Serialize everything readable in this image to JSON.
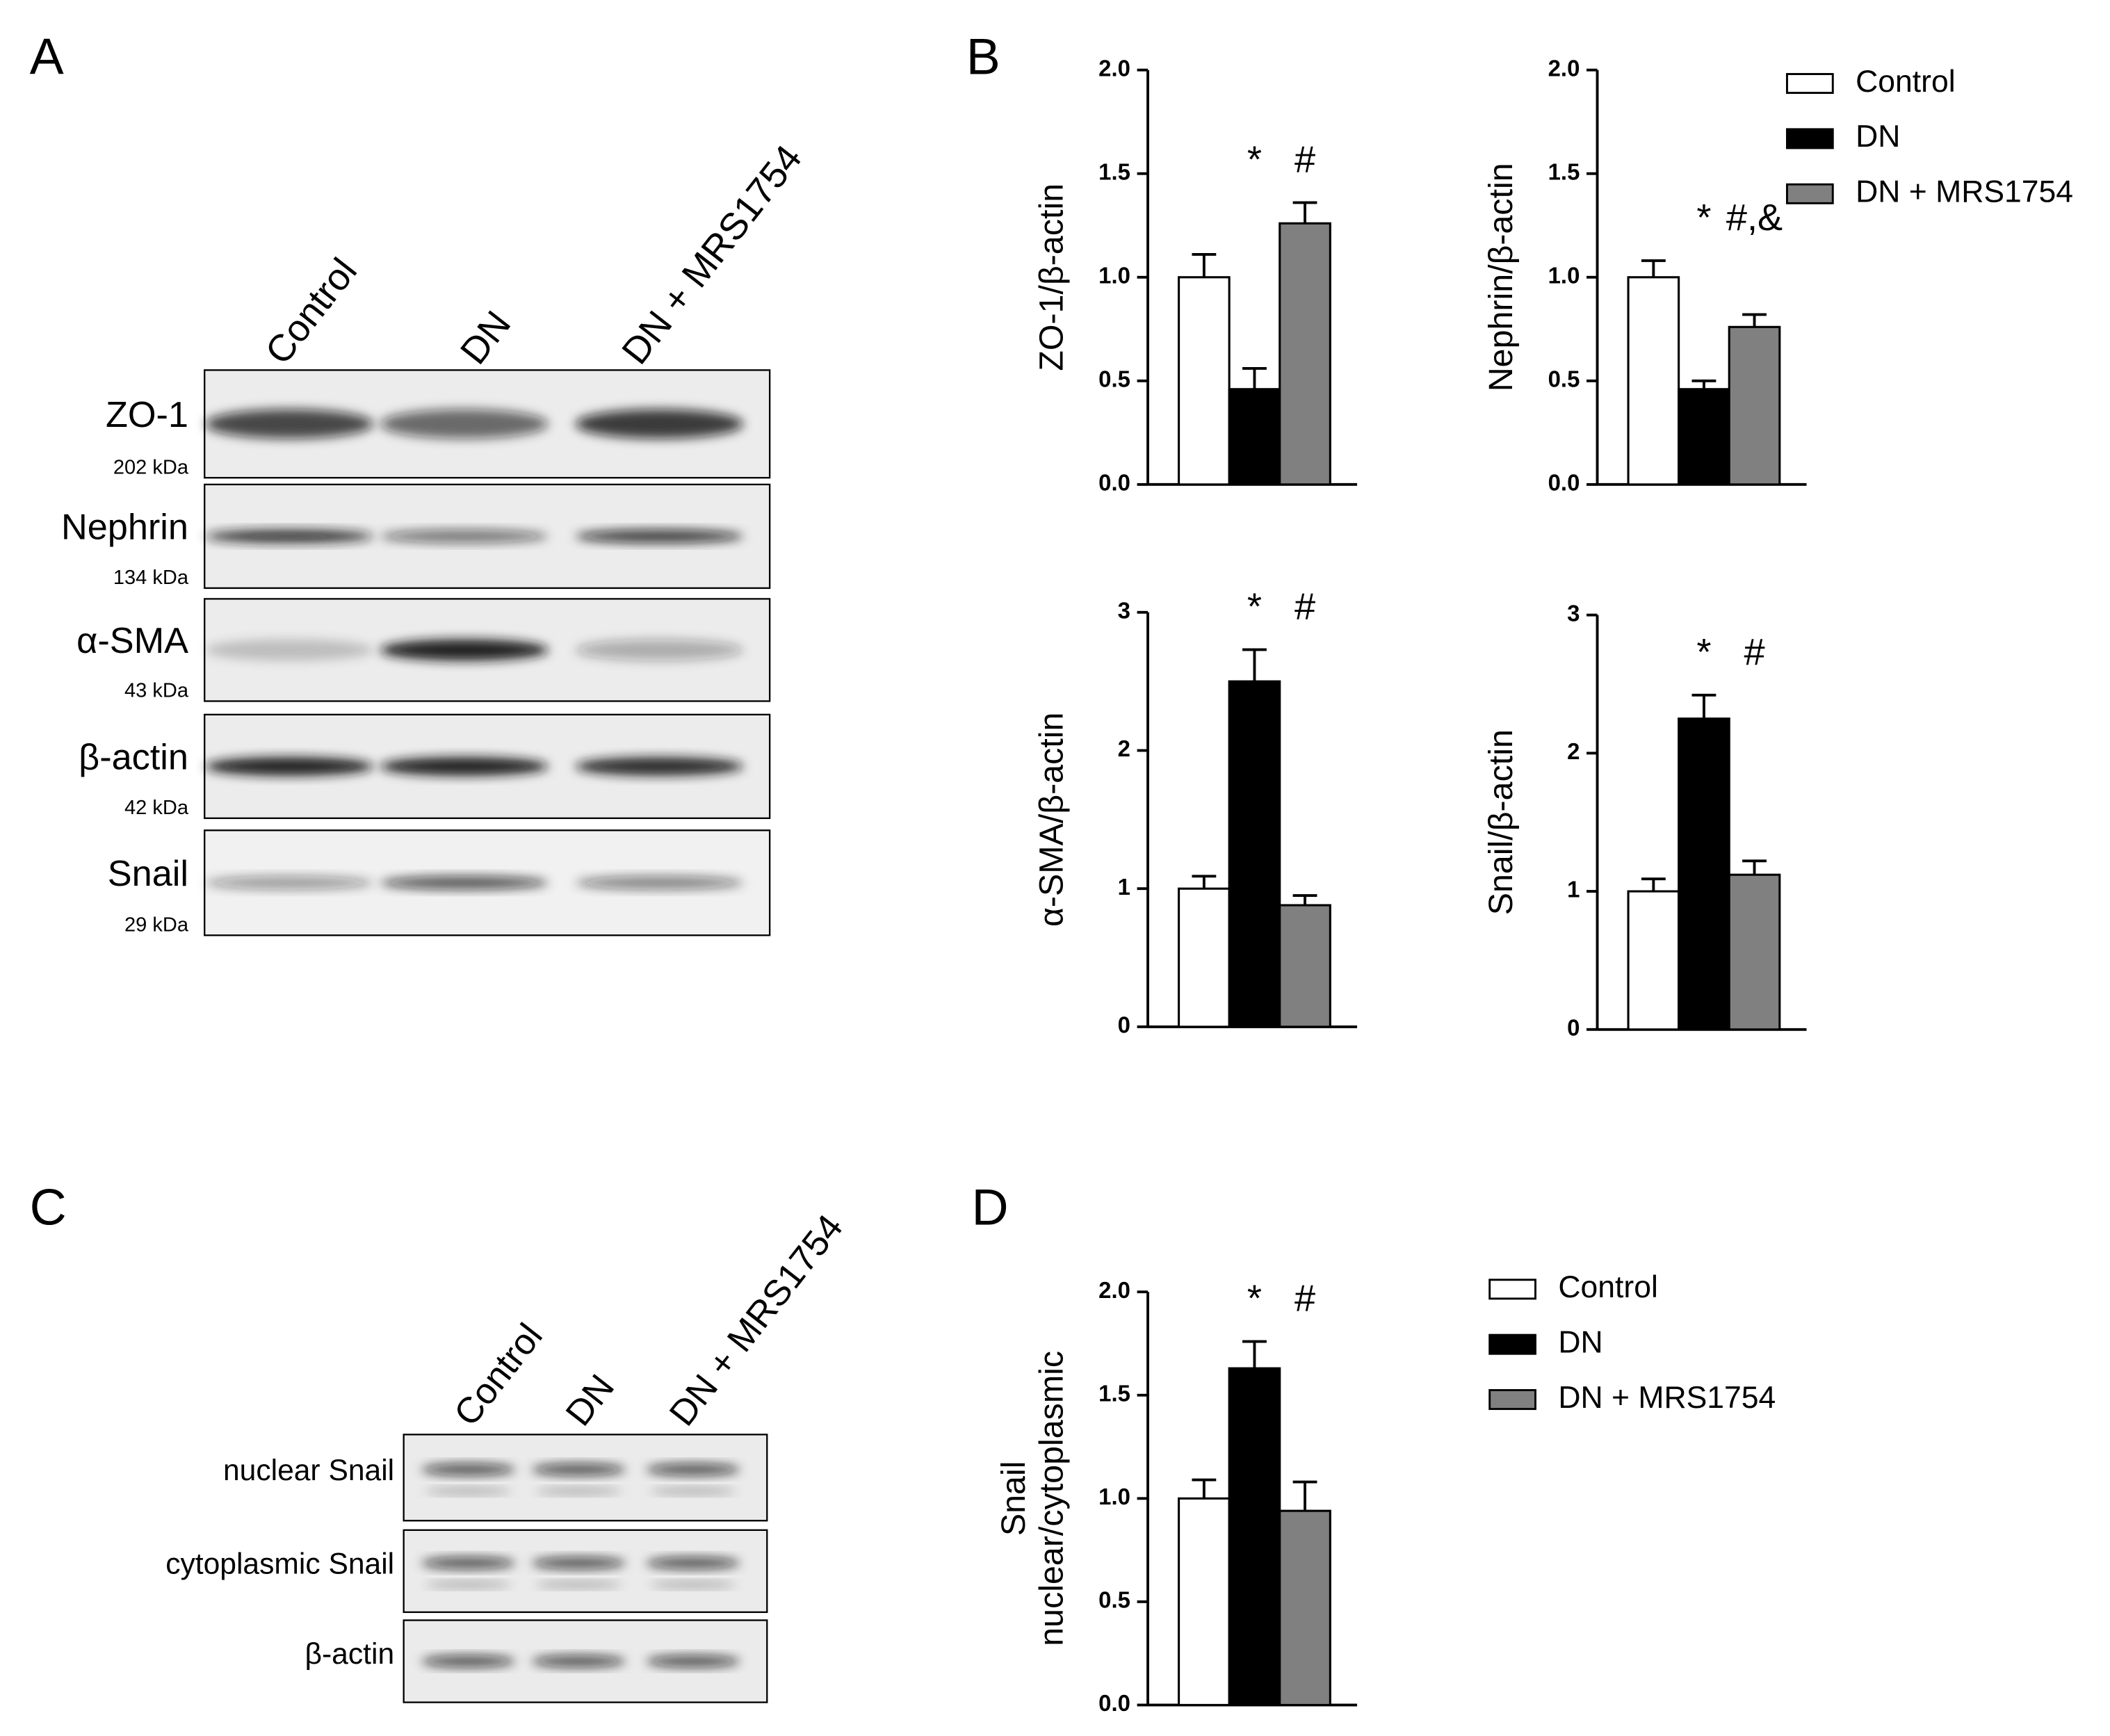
{
  "panels": [
    "A",
    "B",
    "C",
    "D"
  ],
  "blot_a": {
    "lanes": [
      "Control",
      "DN",
      "DN + MRS1754"
    ],
    "rows": [
      {
        "name": "ZO-1",
        "size": "202 kDa"
      },
      {
        "name": "Nephrin",
        "size": "134 kDa"
      },
      {
        "name": "α-SMA",
        "size": "43 kDa"
      },
      {
        "name": "β-actin",
        "size": "42 kDa"
      },
      {
        "name": "Snail",
        "size": "29 kDa"
      }
    ]
  },
  "blot_c": {
    "lanes": [
      "Control",
      "DN",
      "DN + MRS1754"
    ],
    "rows": [
      "nuclear Snail",
      "cytoplasmic Snail",
      "β-actin"
    ]
  },
  "chart_data": [
    {
      "type": "bar",
      "ylabel": [
        "ZO-1/β-actin"
      ],
      "values": [
        1.0,
        0.46,
        1.26
      ],
      "errors": [
        0.11,
        0.1,
        0.1
      ],
      "colors": [
        "#ffffff",
        "#000000",
        "#808080"
      ],
      "annotations": [
        "*",
        "#"
      ],
      "ylim": [
        0,
        2
      ],
      "yticks": [
        {
          "value": 0,
          "label": "0.0"
        },
        0.5,
        {
          "value": 1,
          "label": "1.0"
        },
        1.5,
        {
          "value": 2,
          "label": "2.0"
        }
      ],
      "legend": [
        "Control",
        "DN",
        "DN + MRS1754"
      ]
    },
    {
      "type": "bar",
      "ylabel": [
        "Nephrin/β-actin"
      ],
      "values": [
        1.0,
        0.46,
        0.76
      ],
      "errors": [
        0.08,
        0.04,
        0.06
      ],
      "colors": [
        "#ffffff",
        "#000000",
        "#808080"
      ],
      "annotations": [
        "*",
        "#,&"
      ],
      "ylim": [
        0,
        2
      ],
      "yticks": [
        {
          "value": 0,
          "label": "0.0"
        },
        0.5,
        {
          "value": 1,
          "label": "1.0"
        },
        1.5,
        {
          "value": 2,
          "label": "2.0"
        }
      ]
    },
    {
      "type": "bar",
      "ylabel": [
        "α-SMA/β-actin"
      ],
      "values": [
        1.0,
        2.5,
        0.88
      ],
      "errors": [
        0.09,
        0.23,
        0.07
      ],
      "colors": [
        "#ffffff",
        "#000000",
        "#808080"
      ],
      "annotations": [
        "*",
        "#"
      ],
      "ylim": [
        0,
        3
      ],
      "yticks": [
        0,
        1,
        2,
        3
      ]
    },
    {
      "type": "bar",
      "ylabel": [
        "Snail/β-actin"
      ],
      "values": [
        1.0,
        2.25,
        1.12
      ],
      "errors": [
        0.09,
        0.17,
        0.1
      ],
      "colors": [
        "#ffffff",
        "#000000",
        "#808080"
      ],
      "annotations": [
        "*",
        "#"
      ],
      "ylim": [
        0,
        3
      ],
      "yticks": [
        0,
        1,
        2,
        3
      ]
    },
    {
      "type": "bar",
      "ylabel": [
        "Snail",
        "nuclear/cytoplasmic"
      ],
      "values": [
        1.0,
        1.63,
        0.94
      ],
      "errors": [
        0.09,
        0.13,
        0.14
      ],
      "colors": [
        "#ffffff",
        "#000000",
        "#808080"
      ],
      "annotations": [
        "*",
        "#"
      ],
      "ylim": [
        0,
        2
      ],
      "yticks": [
        {
          "value": 0,
          "label": "0.0"
        },
        0.5,
        {
          "value": 1,
          "label": "1.0"
        },
        1.5,
        {
          "value": 2,
          "label": "2.0"
        }
      ],
      "legend": [
        "Control",
        "DN",
        "DN + MRS1754"
      ]
    }
  ]
}
